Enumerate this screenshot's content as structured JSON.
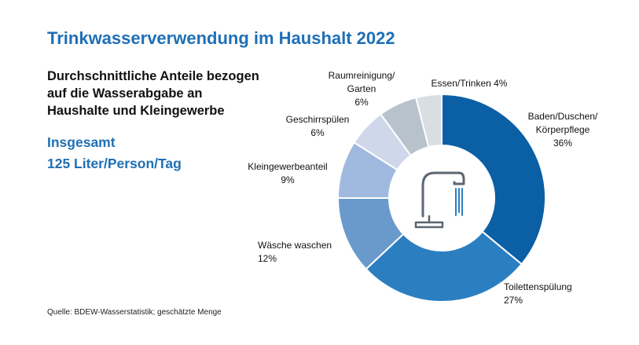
{
  "header": {
    "title": "Trinkwasserverwendung im Haushalt 2022",
    "subtitle_lines": [
      "Durchschnittliche Anteile bezogen",
      "auf die Wasserabgabe an",
      "Haushalte und Kleingewerbe"
    ],
    "total_lines": [
      "Insgesamt",
      "125 Liter/Person/Tag"
    ]
  },
  "footer": {
    "source": "Quelle: BDEW-Wasserstatistik; geschätzte Menge"
  },
  "center_icon": "water-faucet-icon",
  "chart_data": {
    "type": "pie",
    "variant": "donut",
    "unit": "%",
    "slices": [
      {
        "label_lines": [
          "Baden/Duschen/",
          "Körperpflege",
          "36%"
        ],
        "category": "Baden/Duschen/Körperpflege",
        "value": 36,
        "color": "#0b5fa5"
      },
      {
        "label_lines": [
          "Toilettenspülung",
          "27%"
        ],
        "category": "Toilettenspülung",
        "value": 27,
        "color": "#2b7fc1"
      },
      {
        "label_lines": [
          "Wäsche waschen",
          "12%"
        ],
        "category": "Wäsche waschen",
        "value": 12,
        "color": "#6a9acb"
      },
      {
        "label_lines": [
          "Kleingewerbeanteil",
          "9%"
        ],
        "category": "Kleingewerbeanteil",
        "value": 9,
        "color": "#a0b9df"
      },
      {
        "label_lines": [
          "Geschirrspülen",
          "6%"
        ],
        "category": "Geschirrspülen",
        "value": 6,
        "color": "#cfd8ea"
      },
      {
        "label_lines": [
          "Raumreinigung/",
          "Garten",
          "6%"
        ],
        "category": "Raumreinigung/Garten",
        "value": 6,
        "color": "#b7c2cc"
      },
      {
        "label_lines": [
          "Essen/Trinken 4%"
        ],
        "category": "Essen/Trinken",
        "value": 4,
        "color": "#d9dee3"
      }
    ]
  }
}
